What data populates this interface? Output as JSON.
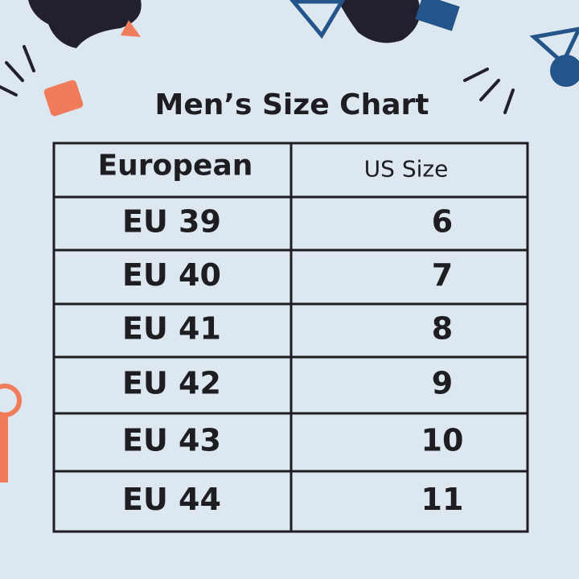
{
  "header": {
    "title": "Men’s Size Chart"
  },
  "table": {
    "columns": [
      "European",
      "US Size"
    ],
    "rows": [
      [
        "EU 39",
        "6"
      ],
      [
        "EU 40",
        "7"
      ],
      [
        "EU 41",
        "8"
      ],
      [
        "EU 42",
        "9"
      ],
      [
        "EU 43",
        "10"
      ],
      [
        "EU 44",
        "11"
      ]
    ]
  }
}
